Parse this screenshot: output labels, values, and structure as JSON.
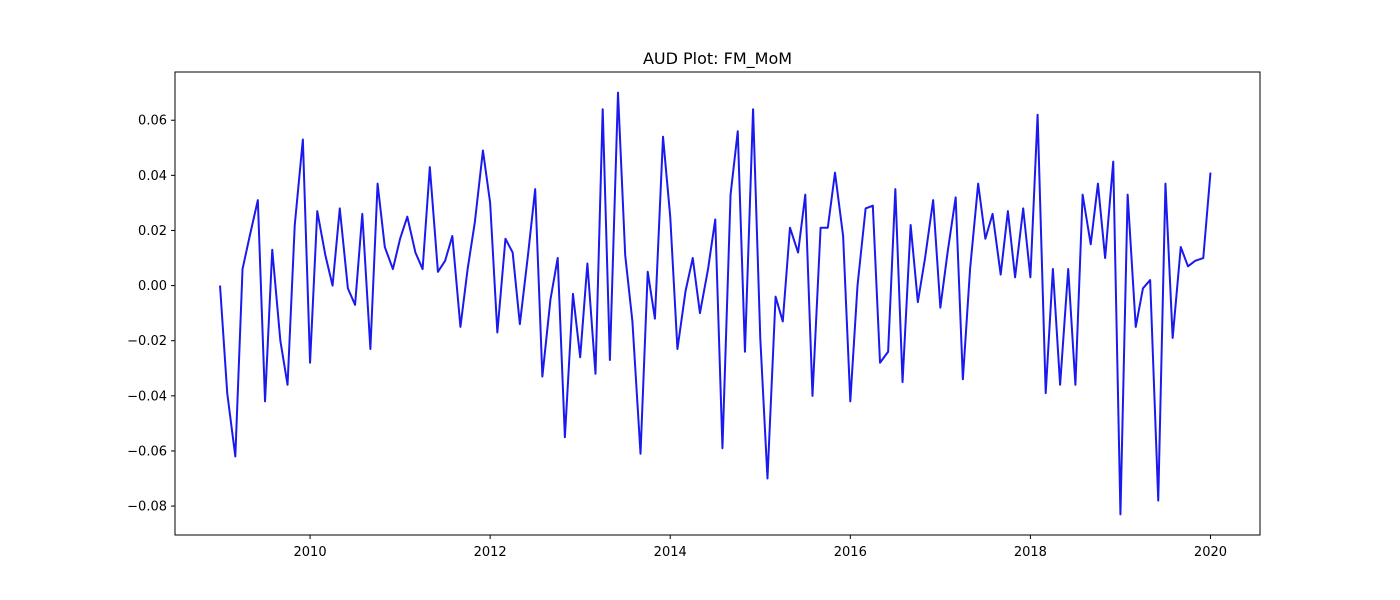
{
  "chart_data": {
    "type": "line",
    "title": "AUD Plot: FM_MoM",
    "xlabel": "",
    "ylabel": "",
    "xlim": [
      2008.5,
      2020.55
    ],
    "ylim": [
      -0.0905,
      0.0775
    ],
    "x_ticks": [
      2010,
      2012,
      2014,
      2016,
      2018,
      2020
    ],
    "x_tick_labels": [
      "2010",
      "2012",
      "2014",
      "2016",
      "2018",
      "2020"
    ],
    "y_ticks": [
      0.06,
      0.04,
      0.02,
      0.0,
      -0.02,
      -0.04,
      -0.06,
      -0.08
    ],
    "y_tick_labels": [
      "0.06",
      "0.04",
      "0.02",
      "0.00",
      "−0.02",
      "−0.04",
      "−0.06",
      "−0.08"
    ],
    "grid": false,
    "line_color": "#1a1aee",
    "series": [
      {
        "x": [
          2009.0,
          2009.08,
          2009.17,
          2009.25,
          2009.33,
          2009.42,
          2009.5,
          2009.58,
          2009.67,
          2009.75,
          2009.83,
          2009.92,
          2010.0,
          2010.08,
          2010.17,
          2010.25,
          2010.33,
          2010.42,
          2010.5,
          2010.58,
          2010.67,
          2010.75,
          2010.83,
          2010.92,
          2011.0,
          2011.08,
          2011.17,
          2011.25,
          2011.33,
          2011.42,
          2011.5,
          2011.58,
          2011.67,
          2011.75,
          2011.83,
          2011.92,
          2012.0,
          2012.08,
          2012.17,
          2012.25,
          2012.33,
          2012.42,
          2012.5,
          2012.58,
          2012.67,
          2012.75,
          2012.83,
          2012.92,
          2013.0,
          2013.08,
          2013.17,
          2013.25,
          2013.33,
          2013.42,
          2013.5,
          2013.58,
          2013.67,
          2013.75,
          2013.83,
          2013.92,
          2014.0,
          2014.08,
          2014.17,
          2014.25,
          2014.33,
          2014.42,
          2014.5,
          2014.58,
          2014.67,
          2014.75,
          2014.83,
          2014.92,
          2015.0,
          2015.08,
          2015.17,
          2015.25,
          2015.33,
          2015.42,
          2015.5,
          2015.58,
          2015.67,
          2015.75,
          2015.83,
          2015.92,
          2016.0,
          2016.08,
          2016.17,
          2016.25,
          2016.33,
          2016.42,
          2016.5,
          2016.58,
          2016.67,
          2016.75,
          2016.83,
          2016.92,
          2017.0,
          2017.08,
          2017.17,
          2017.25,
          2017.33,
          2017.42,
          2017.5,
          2017.58,
          2017.67,
          2017.75,
          2017.83,
          2017.92,
          2018.0,
          2018.08,
          2018.17,
          2018.25,
          2018.33,
          2018.42,
          2018.5,
          2018.58,
          2018.67,
          2018.75,
          2018.83,
          2018.92,
          2019.0,
          2019.08,
          2019.17,
          2019.25,
          2019.33,
          2019.42,
          2019.5,
          2019.58,
          2019.67,
          2019.75,
          2019.83,
          2019.92,
          2020.0
        ],
        "y": [
          0.0,
          -0.039,
          -0.062,
          0.006,
          0.018,
          0.031,
          -0.042,
          0.013,
          -0.02,
          -0.036,
          0.022,
          0.053,
          -0.028,
          0.027,
          0.011,
          0.0,
          0.028,
          -0.001,
          -0.007,
          0.026,
          -0.023,
          0.037,
          0.014,
          0.006,
          0.017,
          0.025,
          0.012,
          0.006,
          0.043,
          0.005,
          0.009,
          0.018,
          -0.015,
          0.006,
          0.023,
          0.049,
          0.03,
          -0.017,
          0.017,
          0.012,
          -0.014,
          0.011,
          0.035,
          -0.033,
          -0.005,
          0.01,
          -0.055,
          -0.003,
          -0.026,
          0.008,
          -0.032,
          0.064,
          -0.027,
          0.07,
          0.011,
          -0.013,
          -0.061,
          0.005,
          -0.012,
          0.054,
          0.025,
          -0.023,
          -0.002,
          0.01,
          -0.01,
          0.006,
          0.024,
          -0.059,
          0.033,
          0.056,
          -0.024,
          0.064,
          -0.019,
          -0.07,
          -0.004,
          -0.013,
          0.021,
          0.012,
          0.033,
          -0.04,
          0.021,
          0.021,
          0.041,
          0.018,
          -0.042,
          0.0,
          0.028,
          0.029,
          -0.028,
          -0.024,
          0.035,
          -0.035,
          0.022,
          -0.006,
          0.01,
          0.031,
          -0.008,
          0.012,
          0.032,
          -0.034,
          0.006,
          0.037,
          0.017,
          0.026,
          0.004,
          0.027,
          0.003,
          0.028,
          0.003,
          0.062,
          -0.039,
          0.006,
          -0.036,
          0.006,
          -0.036,
          0.033,
          0.015,
          0.037,
          0.01,
          0.045,
          -0.083,
          0.033,
          -0.015,
          -0.001,
          0.002,
          -0.078,
          0.037,
          -0.019,
          0.014,
          0.007,
          0.009,
          0.01,
          0.041
        ]
      }
    ]
  }
}
